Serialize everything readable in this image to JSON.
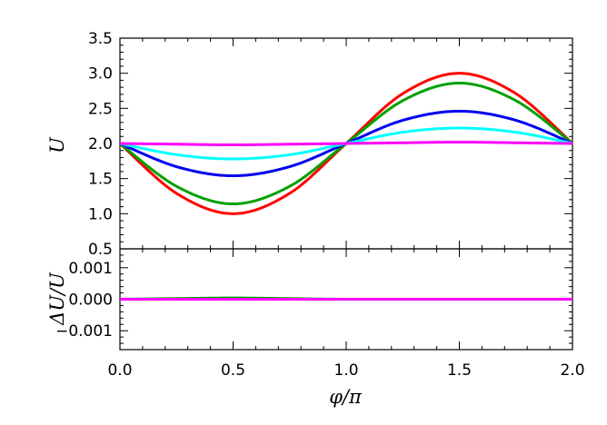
{
  "chart_data": [
    {
      "type": "line",
      "xlabel": "φ/π",
      "ylabel": "U",
      "xlim": [
        0.0,
        2.0
      ],
      "ylim": [
        0.5,
        3.5
      ],
      "xticks": [
        "0.0",
        "0.5",
        "1.0",
        "1.5",
        "2.0"
      ],
      "yticks": [
        "0.5",
        "1.0",
        "1.5",
        "2.0",
        "2.5",
        "3.0",
        "3.5"
      ],
      "grid": false,
      "legend": "none",
      "series": [
        {
          "color": "#ff0000",
          "x": [
            0.0,
            0.25,
            0.5,
            0.75,
            1.0,
            1.25,
            1.5,
            1.75,
            2.0
          ],
          "values": [
            2.0,
            1.29,
            1.0,
            1.29,
            2.0,
            2.71,
            3.0,
            2.71,
            2.0
          ]
        },
        {
          "color": "#00a000",
          "x": [
            0.0,
            0.25,
            0.5,
            0.75,
            1.0,
            1.25,
            1.5,
            1.75,
            2.0
          ],
          "values": [
            2.0,
            1.39,
            1.14,
            1.39,
            2.0,
            2.61,
            2.86,
            2.61,
            2.0
          ]
        },
        {
          "color": "#0000ee",
          "x": [
            0.0,
            0.25,
            0.5,
            0.75,
            1.0,
            1.25,
            1.5,
            1.75,
            2.0
          ],
          "values": [
            2.0,
            1.67,
            1.54,
            1.67,
            2.0,
            2.33,
            2.46,
            2.33,
            2.0
          ]
        },
        {
          "color": "#00ffff",
          "x": [
            0.0,
            0.25,
            0.5,
            0.75,
            1.0,
            1.25,
            1.5,
            1.75,
            2.0
          ],
          "values": [
            2.0,
            1.84,
            1.78,
            1.84,
            2.0,
            2.16,
            2.22,
            2.16,
            2.0
          ]
        },
        {
          "color": "#ff00ff",
          "x": [
            0.0,
            0.25,
            0.5,
            0.75,
            1.0,
            1.25,
            1.5,
            1.75,
            2.0
          ],
          "values": [
            2.0,
            1.99,
            1.98,
            1.99,
            2.0,
            2.01,
            2.02,
            2.01,
            2.0
          ]
        }
      ]
    },
    {
      "type": "line",
      "xlabel": "φ/π",
      "ylabel": "ΔU/U",
      "xlim": [
        0.0,
        2.0
      ],
      "ylim": [
        -0.0016,
        0.0016
      ],
      "xticks": [
        "0.0",
        "0.5",
        "1.0",
        "1.5",
        "2.0"
      ],
      "yticks": [
        "−0.001",
        "0.000",
        "0.001"
      ],
      "ytick_values": [
        -0.001,
        0.0,
        0.001
      ],
      "grid": false,
      "legend": "none",
      "series": [
        {
          "color": "#00a000",
          "x": [
            0.0,
            0.25,
            0.5,
            0.75,
            1.0,
            1.5,
            2.0
          ],
          "values": [
            0.0,
            2e-05,
            4e-05,
            2e-05,
            0.0,
            0.0,
            0.0
          ]
        },
        {
          "color": "#ff00ff",
          "x": [
            0.0,
            0.5,
            1.0,
            1.5,
            2.0
          ],
          "values": [
            0.0,
            0.0,
            0.0,
            0.0,
            0.0
          ]
        }
      ]
    }
  ]
}
